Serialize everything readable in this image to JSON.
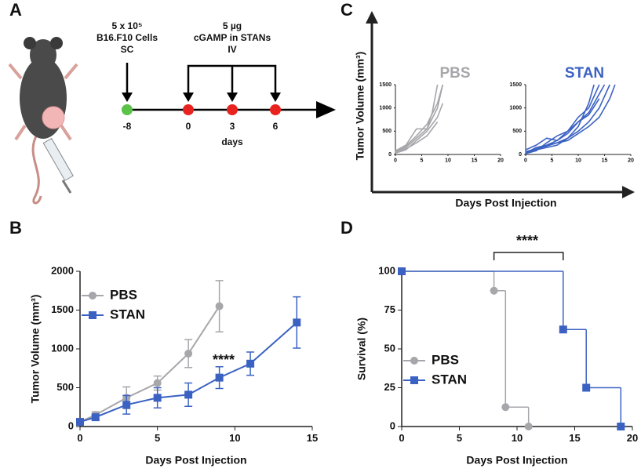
{
  "panel_labels": [
    "A",
    "B",
    "C",
    "D"
  ],
  "timeline": {
    "cells_dose": [
      "5 x 10⁵",
      "B16.F10 Cells",
      "SC"
    ],
    "stan_dose": [
      "5 µg",
      "cGAMP in STANs",
      "IV"
    ],
    "day_labels": [
      "-8",
      "0",
      "3",
      "6"
    ],
    "axis_label": "days"
  },
  "panel_c": {
    "y_label": "Tumor Volume (mm³)",
    "x_label": "Days Post Injection"
  },
  "chart_data": [
    {
      "type": "line",
      "x_label": "Days Post Injection",
      "y_label": "Tumor Volume (mm³)",
      "annotation": "****",
      "xlim": [
        0,
        15
      ],
      "xticks": [
        0,
        5,
        10,
        15
      ],
      "ylim": [
        0,
        2000
      ],
      "yticks": [
        0,
        500,
        1000,
        1500,
        2000
      ],
      "legend": "upper left",
      "series": [
        {
          "name": "PBS",
          "color": "#a6a6ab",
          "marker": "circle",
          "x": [
            0,
            1,
            3,
            5,
            7,
            9
          ],
          "values": [
            60,
            150,
            370,
            560,
            940,
            1550
          ],
          "errors": [
            20,
            40,
            140,
            90,
            180,
            330
          ]
        },
        {
          "name": "STAN",
          "color": "#3b62c2",
          "marker": "square",
          "x": [
            0,
            1,
            3,
            5,
            7,
            9,
            11,
            14
          ],
          "values": [
            60,
            120,
            280,
            370,
            410,
            630,
            810,
            1340
          ],
          "errors": [
            20,
            30,
            120,
            130,
            150,
            140,
            150,
            330
          ]
        }
      ]
    },
    {
      "type": "step",
      "x_label": "Days Post Injection",
      "y_label": "Survival (%)",
      "annotation": "****",
      "xlim": [
        0,
        20
      ],
      "xticks": [
        0,
        5,
        10,
        15,
        20
      ],
      "ylim": [
        0,
        100
      ],
      "yticks": [
        0,
        25,
        50,
        75,
        100
      ],
      "legend": "lower left",
      "series": [
        {
          "name": "PBS",
          "color": "#a6a6ab",
          "marker": "circle",
          "x": [
            0,
            8,
            9,
            11
          ],
          "values": [
            100,
            87.5,
            12.5,
            0
          ]
        },
        {
          "name": "STAN",
          "color": "#3b62c2",
          "marker": "square",
          "x": [
            0,
            14,
            16,
            19
          ],
          "values": [
            100,
            62.5,
            25,
            0
          ]
        }
      ]
    },
    {
      "type": "line",
      "title": "PBS",
      "xlim": [
        0,
        20
      ],
      "xticks": [
        0,
        5,
        10,
        15,
        20
      ],
      "ylim": [
        0,
        1500
      ],
      "yticks": [
        0,
        500,
        1000,
        1500
      ],
      "series": [
        {
          "color": "#a6a6ab",
          "x": [
            0,
            2,
            4,
            6,
            8,
            9
          ],
          "values": [
            50,
            150,
            350,
            550,
            1000,
            1500
          ]
        },
        {
          "color": "#a6a6ab",
          "x": [
            0,
            2,
            4,
            6,
            7,
            8
          ],
          "values": [
            80,
            200,
            550,
            550,
            900,
            1500
          ]
        },
        {
          "color": "#a6a6ab",
          "x": [
            0,
            2,
            4,
            6,
            8,
            9
          ],
          "values": [
            30,
            100,
            300,
            500,
            800,
            1100
          ]
        },
        {
          "color": "#a6a6ab",
          "x": [
            0,
            2,
            4,
            6,
            8,
            9
          ],
          "values": [
            60,
            180,
            400,
            650,
            1100,
            1500
          ]
        },
        {
          "color": "#a6a6ab",
          "x": [
            0,
            2,
            4,
            6,
            8
          ],
          "values": [
            40,
            120,
            250,
            400,
            700
          ]
        }
      ]
    },
    {
      "type": "line",
      "title": "STAN",
      "xlim": [
        0,
        20
      ],
      "xticks": [
        0,
        5,
        10,
        15,
        20
      ],
      "ylim": [
        0,
        1500
      ],
      "yticks": [
        0,
        500,
        1000,
        1500
      ],
      "series": [
        {
          "color": "#3b62c2",
          "x": [
            0,
            2,
            4,
            6,
            8,
            10,
            12,
            14,
            15
          ],
          "values": [
            50,
            100,
            200,
            300,
            450,
            700,
            900,
            1300,
            1500
          ]
        },
        {
          "color": "#3b62c2",
          "x": [
            0,
            2,
            4,
            6,
            8,
            10,
            12,
            14
          ],
          "values": [
            100,
            200,
            350,
            300,
            500,
            800,
            1000,
            1500
          ]
        },
        {
          "color": "#3b62c2",
          "x": [
            0,
            2,
            4,
            6,
            8,
            10,
            12,
            13
          ],
          "values": [
            30,
            150,
            200,
            250,
            350,
            600,
            1100,
            1500
          ]
        },
        {
          "color": "#3b62c2",
          "x": [
            0,
            2,
            4,
            6,
            8,
            10,
            12,
            14,
            16,
            17
          ],
          "values": [
            60,
            120,
            180,
            250,
            300,
            450,
            600,
            800,
            1200,
            1500
          ]
        },
        {
          "color": "#3b62c2",
          "x": [
            0,
            2,
            4,
            6,
            8,
            10,
            12,
            14
          ],
          "values": [
            20,
            80,
            250,
            400,
            500,
            700,
            850,
            1200
          ]
        },
        {
          "color": "#3b62c2",
          "x": [
            0,
            2,
            4,
            6,
            8,
            10,
            12,
            14,
            16
          ],
          "values": [
            40,
            100,
            150,
            200,
            350,
            500,
            700,
            1000,
            1500
          ]
        }
      ]
    }
  ]
}
